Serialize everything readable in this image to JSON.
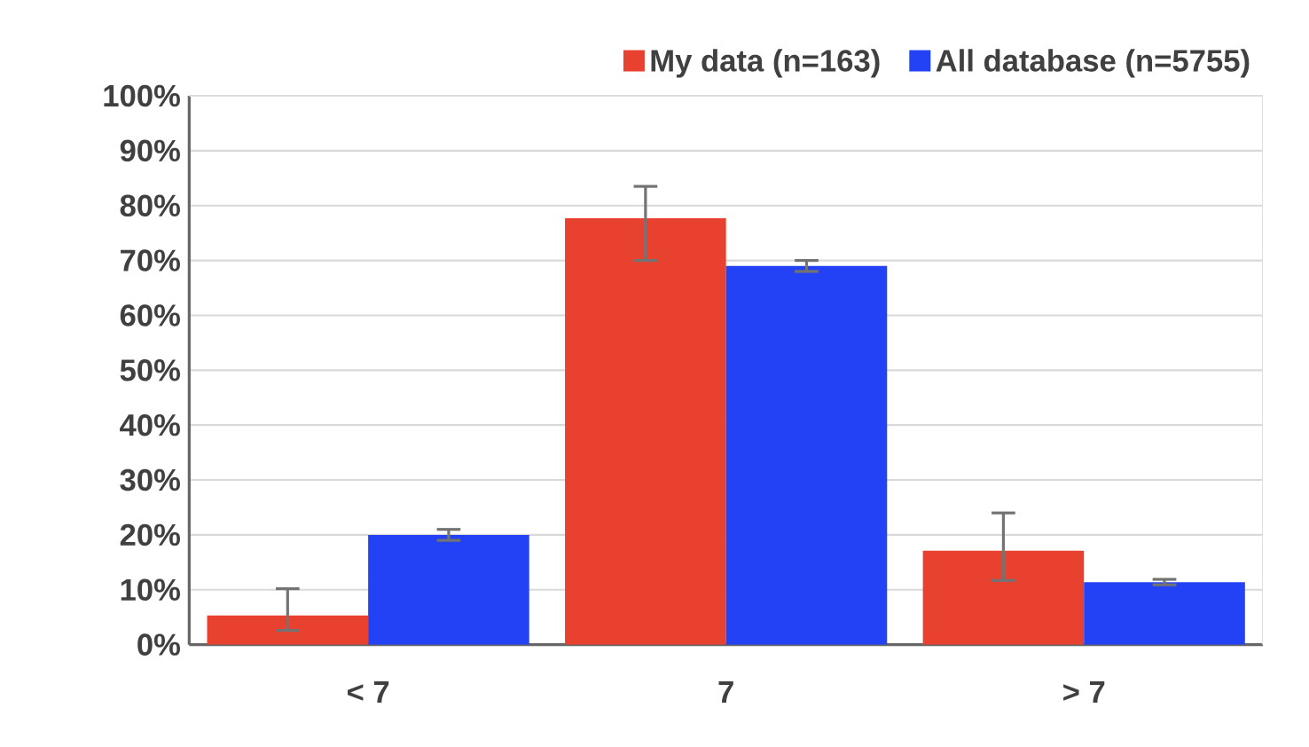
{
  "chart_data": {
    "type": "bar",
    "categories": [
      "< 7",
      "7",
      "> 7"
    ],
    "series": [
      {
        "name": "My data (n=163)",
        "color": "#e8412f",
        "values": [
          5.3,
          77.7,
          17.1
        ],
        "errors": [
          [
            2.6,
            10.2
          ],
          [
            70,
            83.5
          ],
          [
            11.7,
            24
          ]
        ]
      },
      {
        "name": "All database (n=5755)",
        "color": "#2442f5",
        "values": [
          20,
          69,
          11.4
        ],
        "errors": [
          [
            19,
            21
          ],
          [
            68,
            70
          ],
          [
            10.9,
            11.9
          ]
        ]
      }
    ],
    "ylim": [
      0,
      100
    ],
    "yticks": [
      {
        "value": 0,
        "label": "0%"
      },
      {
        "value": 10,
        "label": "10%"
      },
      {
        "value": 20,
        "label": "20%"
      },
      {
        "value": 30,
        "label": "30%"
      },
      {
        "value": 40,
        "label": "40%"
      },
      {
        "value": 50,
        "label": "50%"
      },
      {
        "value": 60,
        "label": "60%"
      },
      {
        "value": 70,
        "label": "70%"
      },
      {
        "value": 80,
        "label": "80%"
      },
      {
        "value": 90,
        "label": "90%"
      },
      {
        "value": 100,
        "label": "100%"
      }
    ],
    "grid": "y",
    "legend": "top right"
  }
}
